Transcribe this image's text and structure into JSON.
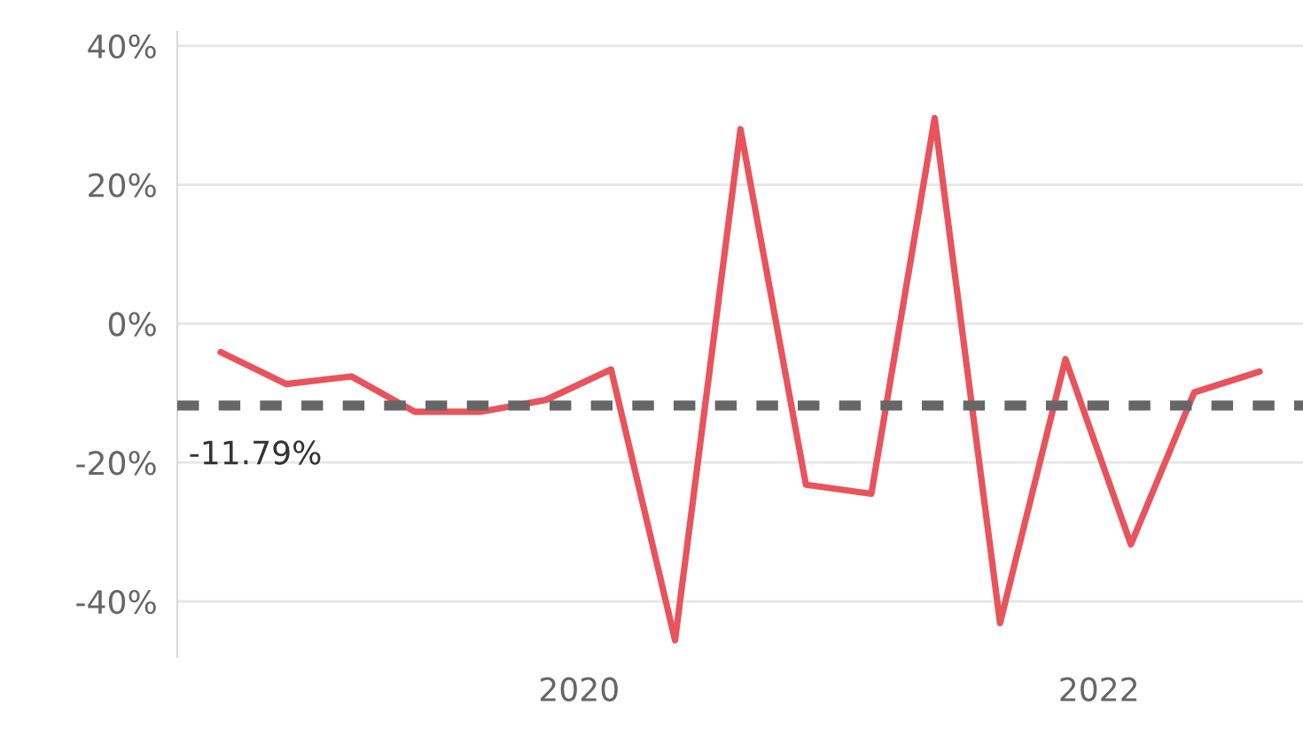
{
  "chart_data": {
    "type": "line",
    "x": [
      "2018-08-15",
      "2018-11-15",
      "2019-02-15",
      "2019-05-15",
      "2019-08-15",
      "2019-11-15",
      "2020-02-15",
      "2020-05-15",
      "2020-08-15",
      "2020-11-15",
      "2021-02-15",
      "2021-05-15",
      "2021-08-15",
      "2021-11-15",
      "2022-02-15",
      "2022-05-15",
      "2022-08-15"
    ],
    "series": [
      {
        "color": "#e8535c",
        "values": [
          -4.1,
          -8.7,
          -7.6,
          -12.7,
          -12.7,
          -11.0,
          -6.6,
          -45.6,
          28.0,
          -23.2,
          -24.5,
          29.6,
          -43.1,
          -5.1,
          -31.8,
          -9.9,
          -6.9
        ]
      }
    ],
    "xlim": [
      "2018-06-15",
      "2022-10-15"
    ],
    "xticks": [
      {
        "value": "2020-01-01",
        "label": "2020"
      },
      {
        "value": "2022-01-01",
        "label": "2022"
      }
    ],
    "ylim": [
      -48,
      42
    ],
    "yticks": [
      {
        "value": -40,
        "label": "-40%"
      },
      {
        "value": -20,
        "label": "-20%"
      },
      {
        "value": 0,
        "label": "0%"
      },
      {
        "value": 20,
        "label": "20%"
      },
      {
        "value": 40,
        "label": "40%"
      }
    ],
    "ref_lines": [
      {
        "axis": "y",
        "value": -11.79,
        "label": "-11.79%",
        "color": "#666666",
        "line_style": "dashed"
      }
    ],
    "grid": "y",
    "legend": false,
    "marker": "none",
    "line_style": "solid"
  }
}
